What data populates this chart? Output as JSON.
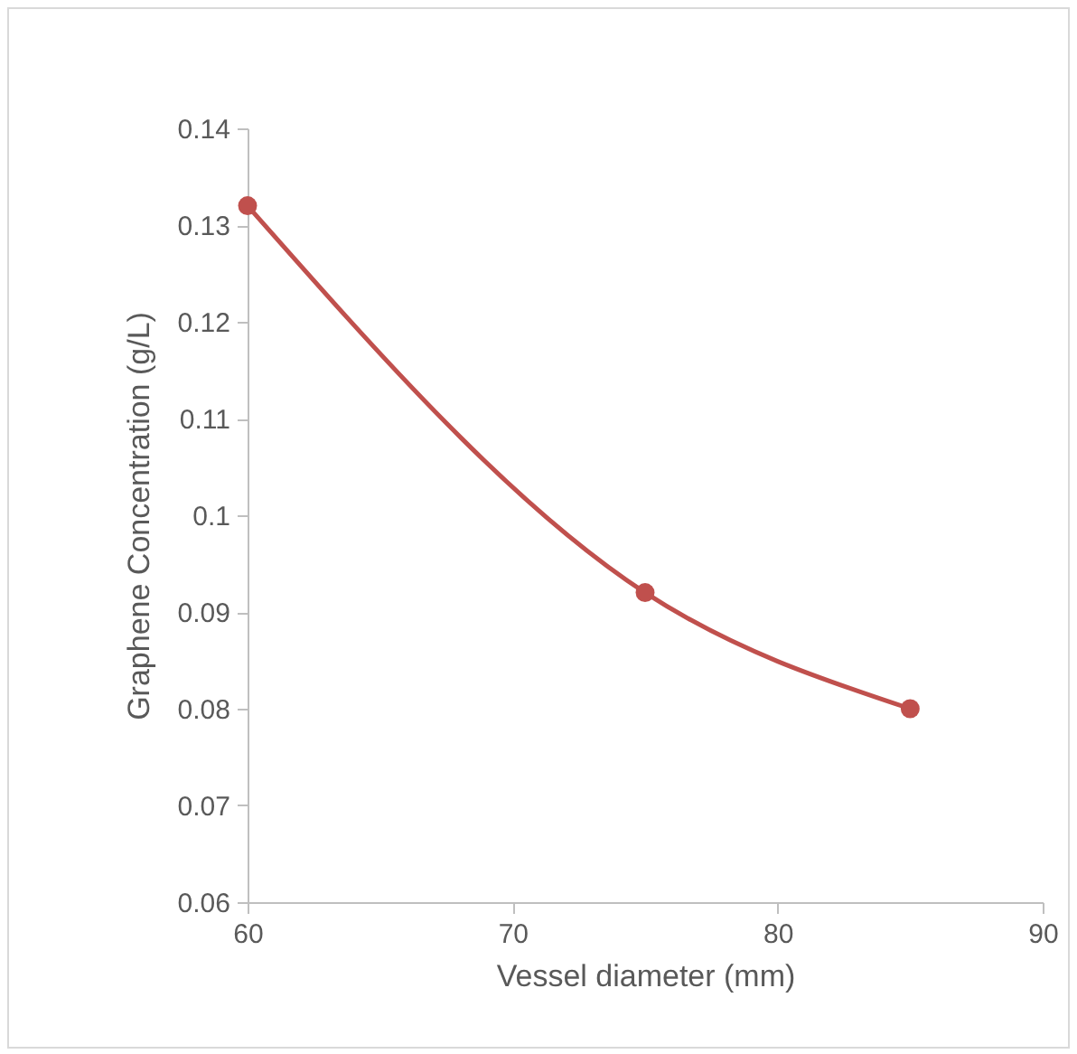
{
  "chart_data": {
    "type": "line",
    "xlabel": "Vessel diameter (mm)",
    "ylabel": "Graphene Concentration (g/L)",
    "x": [
      60,
      75,
      85
    ],
    "series": [
      {
        "color": "#c0504d",
        "values": [
          0.132,
          0.092,
          0.08
        ]
      }
    ],
    "xlim": [
      60,
      90
    ],
    "xticks": [
      60,
      70,
      80,
      90
    ],
    "ylim": [
      0.06,
      0.14
    ],
    "yticks": [
      0.06,
      0.07,
      0.08,
      0.09,
      0.1,
      0.11,
      0.12,
      0.13,
      0.14
    ],
    "grid": false,
    "marker": "circle",
    "line_style": "solid"
  }
}
